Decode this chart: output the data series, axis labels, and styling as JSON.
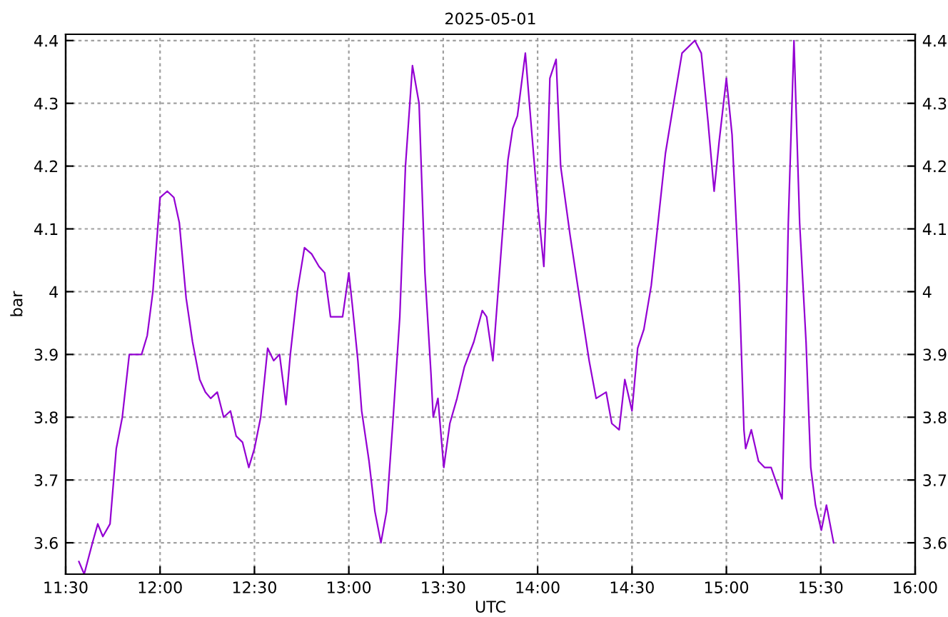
{
  "chart_data": {
    "type": "line",
    "title": "2025-05-01",
    "xlabel": "UTC",
    "ylabel": "bar",
    "x": [
      11.57,
      11.598,
      11.642,
      11.67,
      11.697,
      11.735,
      11.768,
      11.8,
      11.837,
      11.902,
      11.932,
      11.962,
      12.0,
      12.038,
      12.073,
      12.102,
      12.138,
      12.172,
      12.21,
      12.24,
      12.268,
      12.303,
      12.337,
      12.373,
      12.403,
      12.437,
      12.47,
      12.5,
      12.533,
      12.57,
      12.602,
      12.633,
      12.667,
      12.69,
      12.727,
      12.765,
      12.803,
      12.842,
      12.872,
      12.903,
      12.967,
      13.0,
      13.018,
      13.048,
      13.068,
      13.107,
      13.138,
      13.17,
      13.2,
      13.235,
      13.27,
      13.3,
      13.337,
      13.372,
      13.403,
      13.435,
      13.447,
      13.472,
      13.503,
      13.535,
      13.573,
      13.612,
      13.662,
      13.707,
      13.73,
      13.763,
      13.788,
      13.818,
      13.843,
      13.868,
      13.893,
      13.935,
      13.97,
      14.0,
      14.033,
      14.045,
      14.065,
      14.098,
      14.122,
      14.172,
      14.227,
      14.273,
      14.31,
      14.363,
      14.393,
      14.432,
      14.462,
      14.5,
      14.53,
      14.563,
      14.602,
      14.638,
      14.677,
      14.715,
      14.765,
      14.833,
      14.867,
      14.903,
      14.935,
      14.962,
      15.0,
      15.03,
      15.068,
      15.093,
      15.102,
      15.132,
      15.17,
      15.202,
      15.237,
      15.295,
      15.308,
      15.328,
      15.358,
      15.388,
      15.422,
      15.447,
      15.472,
      15.503,
      15.53,
      15.568
    ],
    "series": [
      {
        "color": "#9400d3",
        "values": [
          3.57,
          3.55,
          3.6,
          3.63,
          3.61,
          3.63,
          3.75,
          3.8,
          3.9,
          3.9,
          3.93,
          4.0,
          4.15,
          4.16,
          4.15,
          4.11,
          3.99,
          3.92,
          3.86,
          3.84,
          3.83,
          3.84,
          3.8,
          3.81,
          3.77,
          3.76,
          3.72,
          3.75,
          3.8,
          3.91,
          3.89,
          3.9,
          3.82,
          3.9,
          4.0,
          4.07,
          4.06,
          4.04,
          4.03,
          3.96,
          3.96,
          4.03,
          3.98,
          3.89,
          3.81,
          3.73,
          3.65,
          3.6,
          3.65,
          3.8,
          3.96,
          4.2,
          4.36,
          4.3,
          4.03,
          3.87,
          3.8,
          3.83,
          3.72,
          3.79,
          3.83,
          3.88,
          3.92,
          3.97,
          3.96,
          3.89,
          3.99,
          4.11,
          4.21,
          4.26,
          4.28,
          4.38,
          4.25,
          4.14,
          4.04,
          4.13,
          4.34,
          4.37,
          4.2,
          4.09,
          3.98,
          3.89,
          3.83,
          3.84,
          3.79,
          3.78,
          3.86,
          3.81,
          3.91,
          3.94,
          4.01,
          4.11,
          4.22,
          4.29,
          4.38,
          4.4,
          4.38,
          4.27,
          4.16,
          4.24,
          4.34,
          4.25,
          4.01,
          3.78,
          3.75,
          3.78,
          3.73,
          3.72,
          3.72,
          3.67,
          3.82,
          4.11,
          4.4,
          4.11,
          3.92,
          3.72,
          3.66,
          3.62,
          3.66,
          3.6
        ]
      }
    ],
    "xlim": [
      11.5,
      16.0
    ],
    "xticks": [
      {
        "value": 11.5,
        "label": "11:30"
      },
      {
        "value": 12.0,
        "label": "12:00"
      },
      {
        "value": 12.5,
        "label": "12:30"
      },
      {
        "value": 13.0,
        "label": "13:00"
      },
      {
        "value": 13.5,
        "label": "13:30"
      },
      {
        "value": 14.0,
        "label": "14:00"
      },
      {
        "value": 14.5,
        "label": "14:30"
      },
      {
        "value": 15.0,
        "label": "15:00"
      },
      {
        "value": 15.5,
        "label": "15:30"
      },
      {
        "value": 16.0,
        "label": "16:00"
      }
    ],
    "ylim": [
      3.55,
      4.41
    ],
    "yticks": [
      3.6,
      3.7,
      3.8,
      3.9,
      {
        "value": 4.0,
        "label": "4"
      },
      4.1,
      4.2,
      4.3,
      4.4
    ],
    "y2lim": [
      3.55,
      4.41
    ],
    "y2ticks": [
      3.6,
      3.7,
      3.8,
      3.9,
      {
        "value": 4.0,
        "label": "4"
      },
      4.1,
      4.2,
      4.3,
      4.4
    ],
    "grid": true,
    "line_style": "solid"
  }
}
